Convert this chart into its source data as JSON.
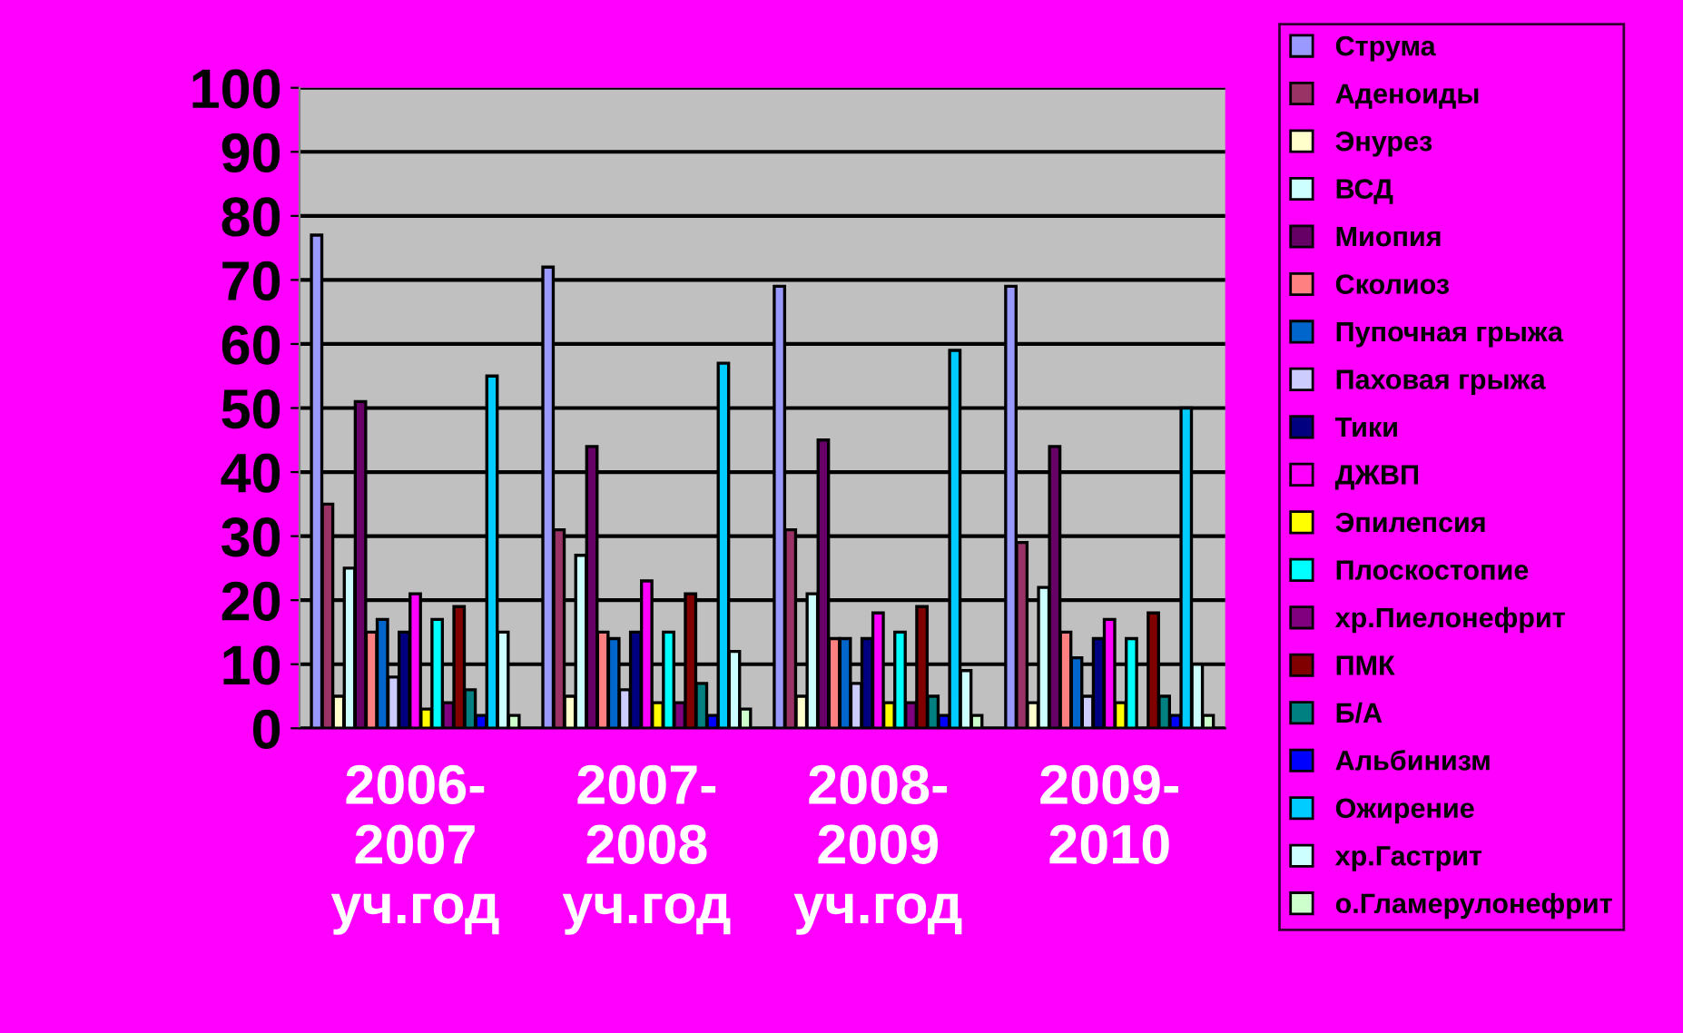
{
  "chart_data": {
    "type": "bar",
    "categories": [
      "2006-\n2007\nуч.год",
      "2007-\n2008\nуч.год",
      "2008-\n2009\nуч.год",
      "2009-\n2010"
    ],
    "ylim": [
      0,
      100
    ],
    "yticks": [
      0,
      10,
      20,
      30,
      40,
      50,
      60,
      70,
      80,
      90,
      100
    ],
    "grid": "y",
    "legend": "right",
    "series": [
      {
        "name": "Струма",
        "color": "#9999ff",
        "values": [
          77,
          72,
          69,
          69
        ]
      },
      {
        "name": "Аденоиды",
        "color": "#993366",
        "values": [
          35,
          31,
          31,
          29
        ]
      },
      {
        "name": "Энурез",
        "color": "#ffffcc",
        "values": [
          5,
          5,
          5,
          4
        ]
      },
      {
        "name": "ВСД",
        "color": "#ccffff",
        "values": [
          25,
          27,
          21,
          22
        ]
      },
      {
        "name": "Миопия",
        "color": "#660066",
        "values": [
          51,
          44,
          45,
          44
        ]
      },
      {
        "name": "Сколиоз",
        "color": "#ff8080",
        "values": [
          15,
          15,
          14,
          15
        ]
      },
      {
        "name": "Пупочная грыжа",
        "color": "#0066cc",
        "values": [
          17,
          14,
          14,
          11
        ]
      },
      {
        "name": "Паховая грыжа",
        "color": "#ccccff",
        "values": [
          8,
          6,
          7,
          5
        ]
      },
      {
        "name": "Тики",
        "color": "#000080",
        "values": [
          15,
          15,
          14,
          14
        ]
      },
      {
        "name": "ДЖВП",
        "color": "#ff00ff",
        "values": [
          21,
          23,
          18,
          17
        ]
      },
      {
        "name": "Эпилепсия",
        "color": "#ffff00",
        "values": [
          3,
          4,
          4,
          4
        ]
      },
      {
        "name": "Плоскостопие",
        "color": "#00ffff",
        "values": [
          17,
          15,
          15,
          14
        ]
      },
      {
        "name": "хр.Пиелонефрит",
        "color": "#800080",
        "values": [
          4,
          4,
          4,
          null
        ]
      },
      {
        "name": "ПМК",
        "color": "#800000",
        "values": [
          19,
          21,
          19,
          18
        ]
      },
      {
        "name": "Б/А",
        "color": "#008080",
        "values": [
          6,
          7,
          5,
          5
        ]
      },
      {
        "name": "Альбинизм",
        "color": "#0000ff",
        "values": [
          2,
          2,
          2,
          2
        ]
      },
      {
        "name": "Ожирение",
        "color": "#00ccff",
        "values": [
          55,
          57,
          59,
          50
        ]
      },
      {
        "name": "хр.Гастрит",
        "color": "#ccffff",
        "values": [
          15,
          12,
          9,
          10
        ]
      },
      {
        "name": "о.Гламерулонефрит",
        "color": "#ccffcc",
        "values": [
          2,
          3,
          2,
          2
        ]
      }
    ]
  }
}
